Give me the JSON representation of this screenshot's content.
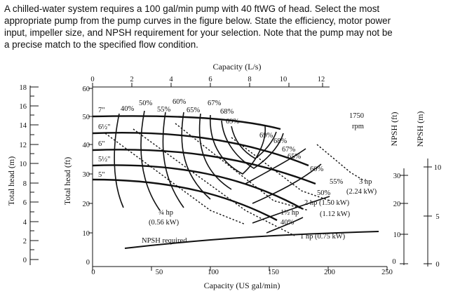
{
  "problem": {
    "lines": [
      "A chilled-water system requires a 100 gal/min pump with 40 ftWG of head. Select the most",
      "appropriate pump from the pump curves in the figure below. State the efficiency, motor power",
      "input, impeller size, and NPSH requirement for your selection. Note that the pump may not be",
      "a precise match to the specified flow condition."
    ]
  },
  "figure": {
    "top_axis_title": "Capacity (L/s)",
    "top_ticks": [
      "0",
      "2",
      "4",
      "6",
      "8",
      "10",
      "12"
    ],
    "bottom_axis_title": "Capacity (US gal/min)",
    "bottom_ticks": [
      "0",
      "50",
      "100",
      "150",
      "200",
      "250"
    ],
    "left_m_title": "Total head (m)",
    "left_m_ticks": [
      "18",
      "16",
      "14",
      "12",
      "10",
      "8",
      "6",
      "4",
      "2",
      "0"
    ],
    "left_ft_title": "Total head (ft)",
    "left_ft_ticks": [
      "60",
      "50",
      "40",
      "30",
      "20",
      "10",
      "0"
    ],
    "npsh_ft_title": "NPSH (ft)",
    "npsh_ft_ticks": [
      "30",
      "20",
      "10",
      "0"
    ],
    "npsh_m_title": "NPSH (m)",
    "npsh_m_ticks": [
      "10",
      "5",
      "0"
    ],
    "speed": [
      "1750",
      "rpm"
    ],
    "impellers": [
      "7\"",
      "6½\"",
      "6\"",
      "5½\"",
      "5\""
    ],
    "efficiency_labels": [
      "40%",
      "50%",
      "55%",
      "60%",
      "65%",
      "67%",
      "68%",
      "69%",
      "69%",
      "68%",
      "67%",
      "65%",
      "60%",
      "55%",
      "50%",
      "40%"
    ],
    "power_labels": [
      "3 hp",
      "(2.24 kW)",
      "2 hp (1.50 kW)",
      "1½ hp",
      "(1.12 kW)",
      "1 hp (0.75 kW)",
      "¾ hp",
      "(0.56 kW)"
    ],
    "npsh_label": "NPSH required"
  }
}
